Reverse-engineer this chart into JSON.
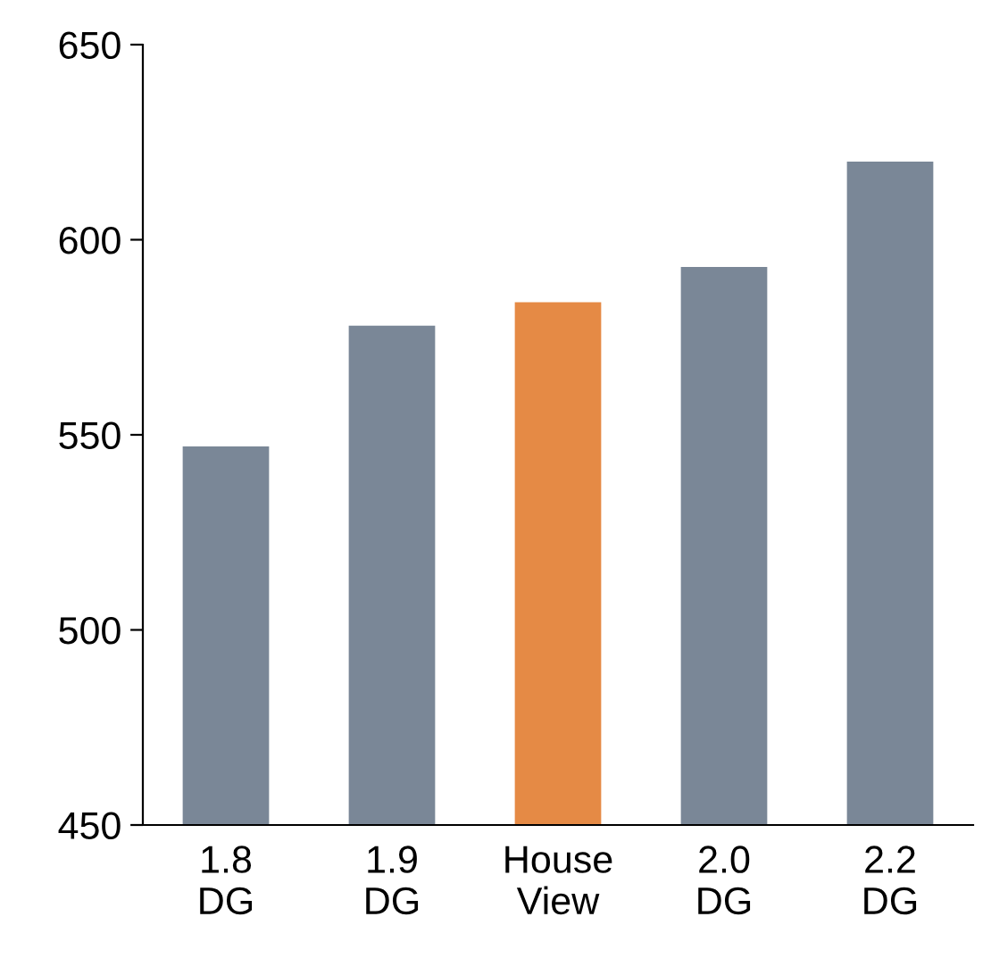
{
  "chart_data": {
    "type": "bar",
    "categories": [
      "1.8\nDG",
      "1.9\nDG",
      "House\nView",
      "2.0\nDG",
      "2.2\nDG"
    ],
    "values": [
      547,
      578,
      584,
      593,
      620
    ],
    "colors": [
      "#7a8797",
      "#7a8797",
      "#e58a45",
      "#7a8797",
      "#7a8797"
    ],
    "ylim": [
      450,
      650
    ],
    "yticks": [
      450,
      500,
      550,
      600,
      650
    ],
    "grid": false,
    "legend": false
  }
}
